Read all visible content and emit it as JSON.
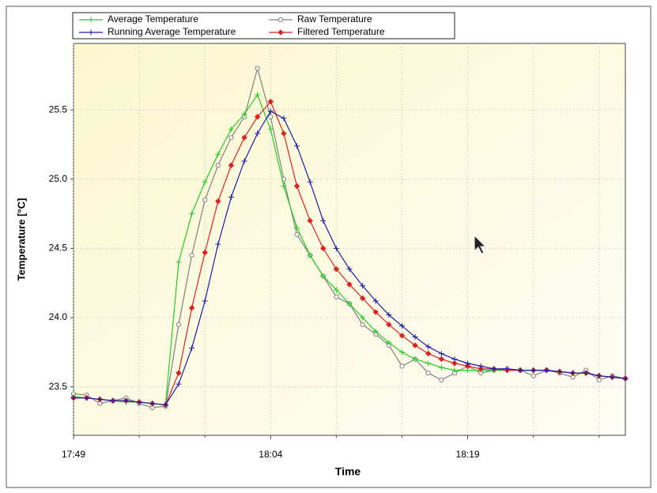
{
  "chart_data": {
    "type": "line",
    "x_label": "Time",
    "y_label": "Temperature [°C]",
    "x": [
      "17:49",
      "17:50",
      "17:51",
      "17:52",
      "17:53",
      "17:54",
      "17:55",
      "17:56",
      "17:57",
      "17:58",
      "17:59",
      "18:00",
      "18:01",
      "18:02",
      "18:03",
      "18:04",
      "18:05",
      "18:06",
      "18:07",
      "18:08",
      "18:09",
      "18:10",
      "18:11",
      "18:12",
      "18:13",
      "18:14",
      "18:15",
      "18:16",
      "18:17",
      "18:18",
      "18:19",
      "18:20",
      "18:21",
      "18:22",
      "18:23",
      "18:24",
      "18:25",
      "18:26",
      "18:27",
      "18:28",
      "18:29",
      "18:30",
      "18:31"
    ],
    "series": [
      {
        "name": "Average Temperature",
        "color": "#22cc22",
        "marker": "plus",
        "values": [
          23.43,
          23.42,
          23.41,
          23.4,
          23.39,
          23.39,
          23.38,
          23.37,
          24.4,
          24.75,
          24.98,
          25.18,
          25.36,
          25.47,
          25.61,
          25.36,
          24.95,
          24.65,
          24.45,
          24.3,
          24.2,
          24.1,
          24.0,
          23.9,
          23.82,
          23.75,
          23.7,
          23.67,
          23.64,
          23.62,
          23.62,
          23.62,
          23.62,
          23.62,
          23.62,
          23.62,
          23.62,
          23.61,
          23.6,
          23.6,
          23.58,
          23.57,
          23.56
        ]
      },
      {
        "name": "Raw Temperature",
        "color": "#808080",
        "marker": "circle",
        "values": [
          23.45,
          23.44,
          23.38,
          23.4,
          23.42,
          23.38,
          23.35,
          23.36,
          23.95,
          24.45,
          24.85,
          25.1,
          25.3,
          25.45,
          25.8,
          25.45,
          25.0,
          24.6,
          24.45,
          24.3,
          24.15,
          24.1,
          23.95,
          23.88,
          23.8,
          23.65,
          23.7,
          23.6,
          23.55,
          23.6,
          23.65,
          23.6,
          23.62,
          23.63,
          23.62,
          23.58,
          23.62,
          23.6,
          23.57,
          23.62,
          23.55,
          23.58,
          23.56
        ]
      },
      {
        "name": "Running Average Temperature",
        "color": "#1a1aaa",
        "marker": "plus",
        "values": [
          23.42,
          23.42,
          23.41,
          23.4,
          23.4,
          23.39,
          23.38,
          23.37,
          23.52,
          23.78,
          24.12,
          24.53,
          24.87,
          25.13,
          25.33,
          25.49,
          25.44,
          25.24,
          24.98,
          24.7,
          24.5,
          24.35,
          24.23,
          24.12,
          24.02,
          23.94,
          23.86,
          23.79,
          23.74,
          23.7,
          23.67,
          23.65,
          23.63,
          23.63,
          23.62,
          23.62,
          23.62,
          23.61,
          23.6,
          23.6,
          23.58,
          23.57,
          23.56
        ]
      },
      {
        "name": "Filtered Temperature",
        "color": "#dd2222",
        "marker": "diamond",
        "values": [
          23.42,
          23.42,
          23.41,
          23.4,
          23.4,
          23.39,
          23.38,
          23.37,
          23.6,
          24.07,
          24.47,
          24.84,
          25.1,
          25.3,
          25.45,
          25.56,
          25.33,
          24.95,
          24.7,
          24.5,
          24.35,
          24.24,
          24.14,
          24.04,
          23.95,
          23.87,
          23.8,
          23.74,
          23.7,
          23.67,
          23.65,
          23.63,
          23.63,
          23.62,
          23.62,
          23.62,
          23.62,
          23.61,
          23.6,
          23.6,
          23.58,
          23.57,
          23.56
        ]
      }
    ],
    "xlim": [
      "17:49",
      "18:31"
    ],
    "xticks": [
      "17:49",
      "18:04",
      "18:19"
    ],
    "xminorticks": [
      "17:54",
      "17:59",
      "18:09",
      "18:14",
      "18:24",
      "18:29"
    ],
    "ylim": [
      23.15,
      25.98
    ],
    "yticks": [
      23.5,
      {
        "value": 24,
        "label": "24.0"
      },
      24.5,
      {
        "value": 25,
        "label": "25.0"
      },
      25.5
    ],
    "grid": true,
    "legend": "top"
  }
}
